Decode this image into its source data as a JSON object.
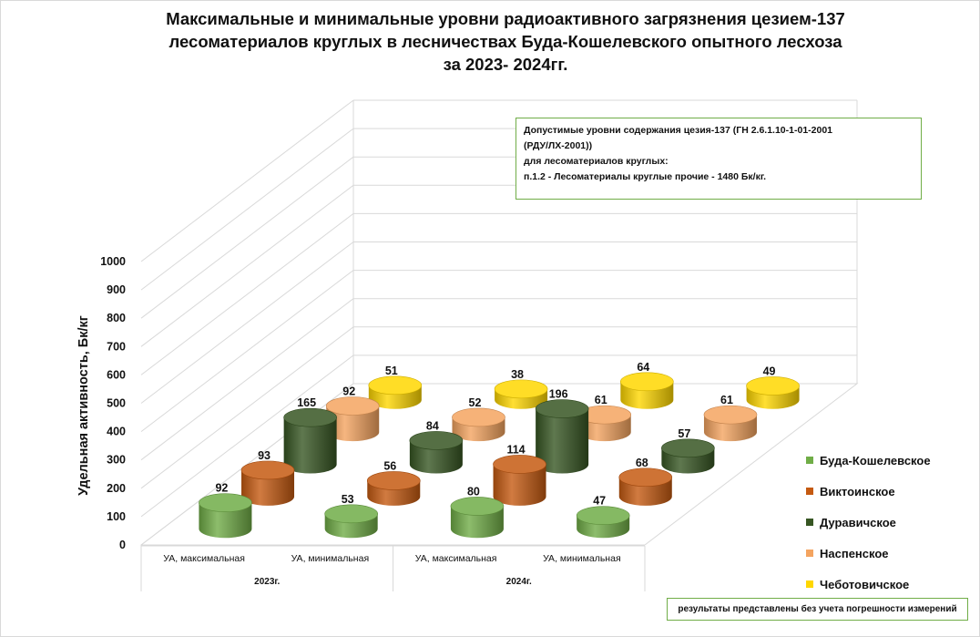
{
  "title": {
    "line1": "Максимальные и минимальные уровни радиоактивного загрязнения цезием-137",
    "line2": "лесоматериалов круглых в лесничествах Буда-Кошелевского опытного лесхоза",
    "line3": "за 2023- 2024гг."
  },
  "note": {
    "line1": "Допустимые уровни содержания цезия-137 (ГН 2.6.1.10-1-01-2001",
    "line2": "(РДУ/ЛХ-2001))",
    "line3": "для лесоматериалов круглых:",
    "line4": "п.1.2 - Лесоматериалы круглые прочие - 1480 Бк/кг."
  },
  "footnote": "результаты представлены без учета погрешности измерений",
  "chart_data": {
    "type": "bar",
    "style": "3d-cylinder",
    "ylabel": "Удельная активность, Бк/кг",
    "ylim": [
      0,
      1000
    ],
    "yticks": [
      0,
      100,
      200,
      300,
      400,
      500,
      600,
      700,
      800,
      900,
      1000
    ],
    "categories": [
      "УА, максимальная",
      "УА, минимальная",
      "УА, максимальная",
      "УА, минимальная"
    ],
    "groups": [
      {
        "label": "2023г.",
        "categories": [
          0,
          1
        ]
      },
      {
        "label": "2024г.",
        "categories": [
          2,
          3
        ]
      }
    ],
    "legend_position": "right",
    "series": [
      {
        "name": "Буда-Кошелевское",
        "color": "#70ad47",
        "values": [
          92,
          53,
          80,
          47
        ]
      },
      {
        "name": "Виктоинское",
        "color": "#c55a11",
        "values": [
          93,
          56,
          114,
          68
        ]
      },
      {
        "name": "Дуравичское",
        "color": "#375623",
        "values": [
          165,
          84,
          196,
          57
        ]
      },
      {
        "name": "Наспенское",
        "color": "#f4a460",
        "values": [
          92,
          52,
          61,
          61
        ]
      },
      {
        "name": "Чеботовичское",
        "color": "#ffd700",
        "values": [
          51,
          38,
          64,
          49
        ]
      }
    ]
  }
}
